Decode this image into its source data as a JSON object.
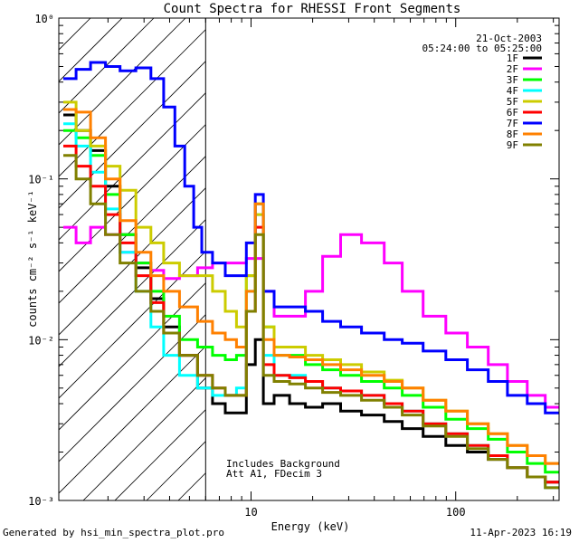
{
  "chart_data": {
    "type": "line",
    "title": "Count Spectra for RHESSI Front Segments",
    "xlabel": "Energy (keV)",
    "ylabel": "counts cm⁻² s⁻¹ keV⁻¹",
    "xscale": "log",
    "yscale": "log",
    "xlim": [
      1.15,
      320
    ],
    "ylim": [
      0.001,
      1.0
    ],
    "x_tick_labels": [
      "10",
      "100"
    ],
    "y_tick_labels": [
      "10⁻³",
      "10⁻²",
      "10⁻¹",
      "10⁰"
    ],
    "date": "21-Oct-2003",
    "time_range": "05:24:00 to 05:25:00",
    "annotation_lines": [
      "Includes Background",
      "Att A1, FDecim 3"
    ],
    "hatched_region_xmax": 6.0,
    "series": [
      {
        "name": "1F",
        "color": "#000000",
        "x": [
          1.3,
          1.5,
          1.8,
          2.1,
          2.5,
          3.0,
          3.5,
          4.0,
          5.0,
          6.0,
          7.0,
          8.0,
          9.0,
          10.0,
          11.0,
          12.0,
          14.0,
          17.0,
          20.0,
          25.0,
          30.0,
          40.0,
          50.0,
          60.0,
          80.0,
          100.0,
          130.0,
          160.0,
          200.0,
          250.0,
          300.0
        ],
        "y": [
          0.25,
          0.2,
          0.15,
          0.09,
          0.045,
          0.028,
          0.018,
          0.012,
          0.008,
          0.005,
          0.004,
          0.0035,
          0.0035,
          0.007,
          0.01,
          0.004,
          0.0045,
          0.004,
          0.0038,
          0.004,
          0.0036,
          0.0034,
          0.0031,
          0.0028,
          0.0025,
          0.0022,
          0.002,
          0.0018,
          0.0016,
          0.0014,
          0.0013
        ]
      },
      {
        "name": "2F",
        "color": "#ff00ff",
        "x": [
          1.3,
          1.5,
          1.8,
          2.1,
          2.5,
          3.0,
          3.5,
          4.0,
          5.0,
          6.0,
          7.0,
          8.0,
          9.0,
          10.0,
          11.0,
          12.0,
          14.0,
          17.0,
          20.0,
          25.0,
          30.0,
          40.0,
          50.0,
          60.0,
          80.0,
          100.0,
          130.0,
          160.0,
          200.0,
          250.0,
          300.0
        ],
        "y": [
          0.05,
          0.04,
          0.05,
          0.045,
          0.035,
          0.03,
          0.027,
          0.024,
          0.025,
          0.028,
          0.03,
          0.03,
          0.03,
          0.032,
          0.032,
          0.02,
          0.014,
          0.014,
          0.02,
          0.033,
          0.045,
          0.04,
          0.03,
          0.02,
          0.014,
          0.011,
          0.009,
          0.007,
          0.0055,
          0.0045,
          0.0038
        ]
      },
      {
        "name": "3F",
        "color": "#00ff00",
        "x": [
          1.3,
          1.5,
          1.8,
          2.1,
          2.5,
          3.0,
          3.5,
          4.0,
          5.0,
          6.0,
          7.0,
          8.0,
          9.0,
          10.0,
          11.0,
          12.0,
          14.0,
          17.0,
          20.0,
          25.0,
          30.0,
          40.0,
          50.0,
          60.0,
          80.0,
          100.0,
          130.0,
          160.0,
          200.0,
          250.0,
          300.0
        ],
        "y": [
          0.2,
          0.18,
          0.14,
          0.08,
          0.045,
          0.03,
          0.02,
          0.014,
          0.01,
          0.009,
          0.008,
          0.0075,
          0.008,
          0.025,
          0.07,
          0.012,
          0.008,
          0.008,
          0.007,
          0.0065,
          0.006,
          0.0055,
          0.005,
          0.0045,
          0.0038,
          0.0032,
          0.0028,
          0.0024,
          0.002,
          0.0017,
          0.0015
        ]
      },
      {
        "name": "4F",
        "color": "#00ffff",
        "x": [
          1.3,
          1.5,
          1.8,
          2.1,
          2.5,
          3.0,
          3.5,
          4.0,
          5.0,
          6.0,
          7.0,
          8.0,
          9.0,
          10.0,
          11.0,
          12.0,
          14.0,
          17.0,
          20.0,
          25.0,
          30.0,
          40.0,
          50.0,
          60.0,
          80.0,
          100.0,
          130.0,
          160.0,
          200.0,
          250.0,
          300.0
        ],
        "y": [
          0.22,
          0.16,
          0.11,
          0.065,
          0.035,
          0.02,
          0.012,
          0.008,
          0.006,
          0.005,
          0.0045,
          0.0045,
          0.005,
          0.02,
          0.06,
          0.008,
          0.006,
          0.006,
          0.0055,
          0.005,
          0.0048,
          0.0045,
          0.004,
          0.0036,
          0.003,
          0.0026,
          0.0022,
          0.0019,
          0.0016,
          0.0014,
          0.0012
        ]
      },
      {
        "name": "5F",
        "color": "#cccc00",
        "x": [
          1.3,
          1.5,
          1.8,
          2.1,
          2.5,
          3.0,
          3.5,
          4.0,
          5.0,
          6.0,
          7.0,
          8.0,
          9.0,
          10.0,
          11.0,
          12.0,
          14.0,
          17.0,
          20.0,
          25.0,
          30.0,
          40.0,
          50.0,
          60.0,
          80.0,
          100.0,
          130.0,
          160.0,
          200.0,
          250.0,
          300.0
        ],
        "y": [
          0.3,
          0.2,
          0.16,
          0.12,
          0.085,
          0.05,
          0.04,
          0.03,
          0.025,
          0.025,
          0.02,
          0.015,
          0.012,
          0.025,
          0.06,
          0.012,
          0.009,
          0.009,
          0.008,
          0.0075,
          0.007,
          0.0063,
          0.0056,
          0.005,
          0.0042,
          0.0036,
          0.003,
          0.0026,
          0.0022,
          0.0019,
          0.0017
        ]
      },
      {
        "name": "6F",
        "color": "#ff0000",
        "x": [
          1.3,
          1.5,
          1.8,
          2.1,
          2.5,
          3.0,
          3.5,
          4.0,
          5.0,
          6.0,
          7.0,
          8.0,
          9.0,
          10.0,
          11.0,
          12.0,
          14.0,
          17.0,
          20.0,
          25.0,
          30.0,
          40.0,
          50.0,
          60.0,
          80.0,
          100.0,
          130.0,
          160.0,
          200.0,
          250.0,
          300.0
        ],
        "y": [
          0.16,
          0.12,
          0.09,
          0.06,
          0.04,
          0.025,
          0.017,
          0.011,
          0.008,
          0.006,
          0.005,
          0.0045,
          0.0045,
          0.015,
          0.05,
          0.007,
          0.006,
          0.0058,
          0.0055,
          0.005,
          0.0048,
          0.0045,
          0.004,
          0.0036,
          0.003,
          0.0026,
          0.0022,
          0.0019,
          0.0016,
          0.0014,
          0.0013
        ]
      },
      {
        "name": "7F",
        "color": "#0000ff",
        "x": [
          1.3,
          1.5,
          1.8,
          2.1,
          2.5,
          3.0,
          3.5,
          4.0,
          4.5,
          5.0,
          5.5,
          6.0,
          7.0,
          8.0,
          9.0,
          10.0,
          11.0,
          12.0,
          14.0,
          17.0,
          20.0,
          25.0,
          30.0,
          40.0,
          50.0,
          60.0,
          80.0,
          100.0,
          130.0,
          160.0,
          200.0,
          250.0,
          300.0
        ],
        "y": [
          0.42,
          0.48,
          0.53,
          0.5,
          0.47,
          0.49,
          0.42,
          0.28,
          0.16,
          0.09,
          0.05,
          0.035,
          0.03,
          0.025,
          0.025,
          0.04,
          0.08,
          0.02,
          0.016,
          0.016,
          0.015,
          0.013,
          0.012,
          0.011,
          0.01,
          0.0095,
          0.0085,
          0.0075,
          0.0065,
          0.0055,
          0.0045,
          0.004,
          0.0035
        ]
      },
      {
        "name": "8F",
        "color": "#ff8000",
        "x": [
          1.3,
          1.5,
          1.8,
          2.1,
          2.5,
          3.0,
          3.5,
          4.0,
          5.0,
          6.0,
          7.0,
          8.0,
          9.0,
          10.0,
          11.0,
          12.0,
          14.0,
          17.0,
          20.0,
          25.0,
          30.0,
          40.0,
          50.0,
          60.0,
          80.0,
          100.0,
          130.0,
          160.0,
          200.0,
          250.0,
          300.0
        ],
        "y": [
          0.27,
          0.26,
          0.18,
          0.1,
          0.055,
          0.035,
          0.025,
          0.02,
          0.016,
          0.013,
          0.011,
          0.01,
          0.009,
          0.02,
          0.07,
          0.01,
          0.008,
          0.0078,
          0.0075,
          0.007,
          0.0065,
          0.006,
          0.0055,
          0.005,
          0.0042,
          0.0036,
          0.003,
          0.0026,
          0.0022,
          0.0019,
          0.0017
        ]
      },
      {
        "name": "9F",
        "color": "#808000",
        "x": [
          1.3,
          1.5,
          1.8,
          2.1,
          2.5,
          3.0,
          3.5,
          4.0,
          5.0,
          6.0,
          7.0,
          8.0,
          9.0,
          10.0,
          11.0,
          12.0,
          14.0,
          17.0,
          20.0,
          25.0,
          30.0,
          40.0,
          50.0,
          60.0,
          80.0,
          100.0,
          130.0,
          160.0,
          200.0,
          250.0,
          300.0
        ],
        "y": [
          0.14,
          0.1,
          0.07,
          0.045,
          0.03,
          0.02,
          0.015,
          0.011,
          0.008,
          0.006,
          0.005,
          0.0045,
          0.0045,
          0.015,
          0.045,
          0.006,
          0.0055,
          0.0053,
          0.005,
          0.0047,
          0.0045,
          0.0042,
          0.0038,
          0.0034,
          0.0029,
          0.0025,
          0.0021,
          0.0018,
          0.0016,
          0.0014,
          0.0012
        ]
      }
    ]
  },
  "footer": {
    "generated_by": "Generated by hsi_min_spectra_plot.pro",
    "timestamp": "11-Apr-2023 16:19"
  }
}
